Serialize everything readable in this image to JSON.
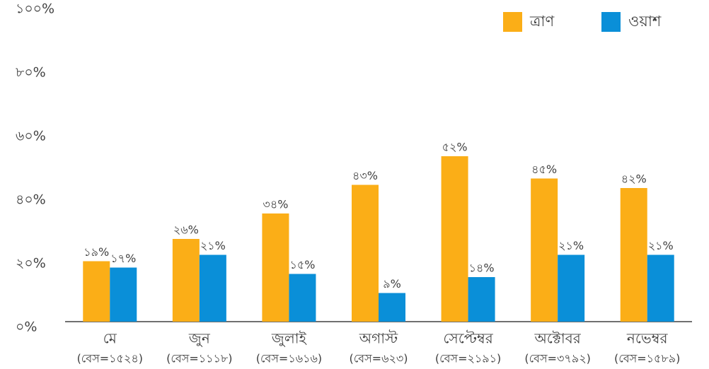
{
  "chart_data": {
    "type": "bar",
    "categories": [
      "মে",
      "জুন",
      "জুলাই",
      "অগাস্ট",
      "সেপ্টেম্বর",
      "অক্টোবর",
      "নভেম্বর"
    ],
    "base_labels": [
      "(বেস=১৫২৪)",
      "(বেস=১১১৮)",
      "(বেস=১৬১৬)",
      "(বেস=৬২৩)",
      "(বেস=২১৯১)",
      "(বেস=৩৭৯২)",
      "(বেস=১৫৮৯)"
    ],
    "series": [
      {
        "name": "ত্রাণ",
        "color": "#fbae17",
        "values": [
          19,
          26,
          34,
          43,
          52,
          45,
          42
        ],
        "value_labels": [
          "১৯%",
          "২৬%",
          "৩৪%",
          "৪৩%",
          "৫২%",
          "৪৫%",
          "৪২%"
        ]
      },
      {
        "name": "ওয়াশ",
        "color": "#0a8fd8",
        "values": [
          17,
          21,
          15,
          9,
          14,
          21,
          21
        ],
        "value_labels": [
          "১৭%",
          "২১%",
          "১৫%",
          "৯%",
          "১৪%",
          "২১%",
          "২১%"
        ]
      }
    ],
    "ylim": [
      0,
      100
    ],
    "yticks": [
      {
        "value": 0,
        "label": "০%"
      },
      {
        "value": 20,
        "label": "২০%"
      },
      {
        "value": 40,
        "label": "৪০%"
      },
      {
        "value": 60,
        "label": "৬০%"
      },
      {
        "value": 80,
        "label": "৮০%"
      },
      {
        "value": 100,
        "label": "১০০%"
      }
    ],
    "legend": "top-right"
  }
}
